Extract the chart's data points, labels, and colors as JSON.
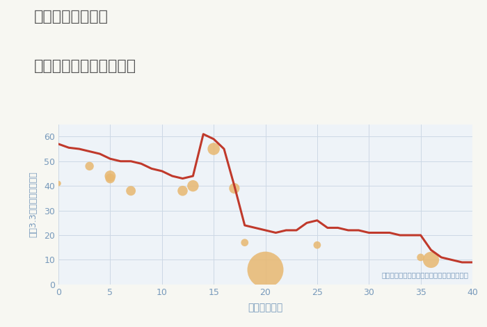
{
  "title_line1": "三重県津市森町の",
  "title_line2": "築年数別中古戸建て価格",
  "xlabel": "築年数（年）",
  "ylabel": "坪（3.3㎡）単価（万円）",
  "bg_color": "#f7f7f2",
  "plot_bg_color": "#eef3f8",
  "line_color": "#c0392b",
  "line_x": [
    0,
    1,
    2,
    3,
    4,
    5,
    6,
    7,
    8,
    9,
    10,
    11,
    12,
    13,
    14,
    15,
    16,
    17,
    18,
    19,
    20,
    21,
    22,
    23,
    24,
    25,
    26,
    27,
    28,
    29,
    30,
    31,
    32,
    33,
    34,
    35,
    36,
    37,
    38,
    39,
    40
  ],
  "line_y": [
    57,
    55.5,
    55,
    54,
    53,
    51,
    50,
    50,
    49,
    47,
    46,
    44,
    43,
    44,
    61,
    59,
    55,
    40,
    24,
    23,
    22,
    21,
    22,
    22,
    25,
    26,
    23,
    23,
    22,
    22,
    21,
    21,
    21,
    20,
    20,
    20,
    14,
    11,
    10,
    9,
    9
  ],
  "scatter_x": [
    0,
    3,
    5,
    5,
    7,
    12,
    13,
    15,
    17,
    18,
    20,
    25,
    35,
    36
  ],
  "scatter_y": [
    41,
    48,
    44,
    43,
    38,
    38,
    40,
    55,
    39,
    17,
    6,
    16,
    11,
    10
  ],
  "scatter_size": [
    30,
    80,
    130,
    100,
    100,
    110,
    140,
    160,
    120,
    60,
    1400,
    60,
    60,
    280
  ],
  "scatter_color": "#e8b870",
  "scatter_alpha": 0.85,
  "annotation": "円の大きさは、取引のあった物件面積を示す",
  "xlim": [
    0,
    40
  ],
  "ylim": [
    0,
    65
  ],
  "xticks": [
    0,
    5,
    10,
    15,
    20,
    25,
    30,
    35,
    40
  ],
  "yticks": [
    0,
    10,
    20,
    30,
    40,
    50,
    60
  ],
  "grid_color": "#ccd8e5",
  "title_color": "#555555",
  "label_color": "#7799bb",
  "tick_color": "#7799bb",
  "annotation_color": "#7799bb"
}
